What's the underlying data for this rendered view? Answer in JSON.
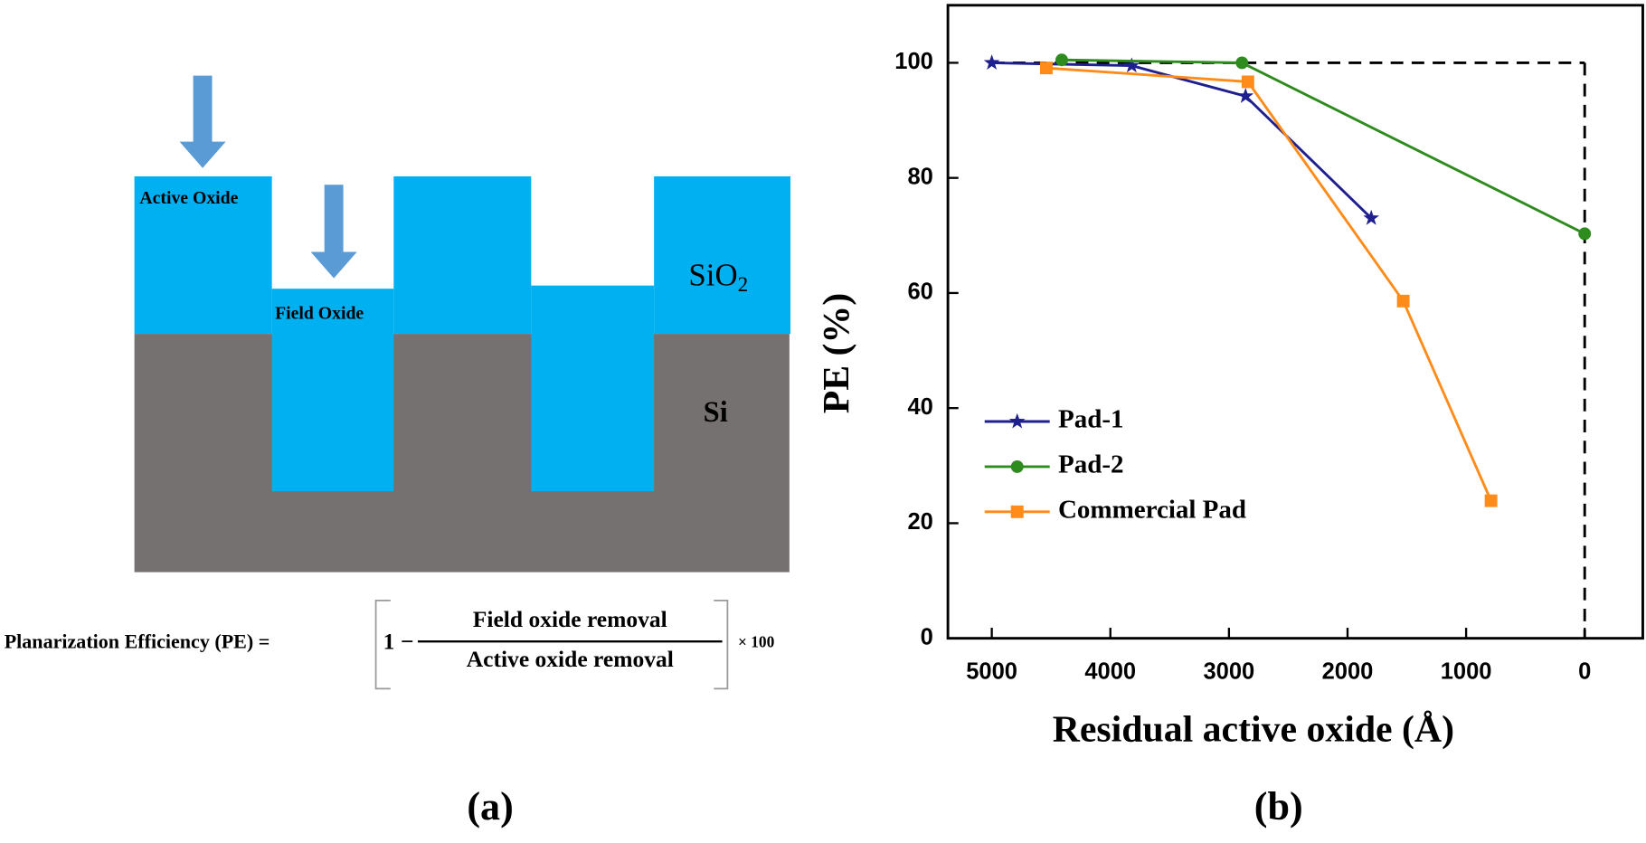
{
  "diagram": {
    "active_oxide": "Active Oxide",
    "field_oxide": "Field Oxide",
    "sio2": {
      "base": "SiO",
      "subscript": "2"
    },
    "si": "Si",
    "equation": {
      "lhs": "Planarization  Efficiency (PE) =",
      "one_minus": "1 −",
      "numerator": "Field oxide removal",
      "denominator": "Active oxide removal",
      "factor": "× 100"
    },
    "panel_label": "(a)"
  },
  "chart_data": {
    "type": "line",
    "panel_label": "(b)",
    "x_label": "Residual active oxide (Å)",
    "y_label": "PE (%)",
    "xlim": [
      5370,
      -490
    ],
    "ylim": [
      0,
      110
    ],
    "xticks": [
      5000,
      4000,
      3000,
      2000,
      1000,
      0
    ],
    "yticks": [
      0,
      20,
      40,
      60,
      80,
      100
    ],
    "legend": "center left",
    "reference_lines": [
      {
        "x": [
          5000,
          0
        ],
        "y": [
          100,
          100
        ]
      },
      {
        "x": [
          0,
          0
        ],
        "y": [
          100,
          0
        ]
      }
    ],
    "series": [
      {
        "name": "Pad-1",
        "color": "#1f1f8f",
        "marker": "star",
        "x": [
          5000,
          3820,
          2860,
          1800
        ],
        "values": [
          100,
          99.5,
          94.2,
          73
        ]
      },
      {
        "name": "Pad-2",
        "color": "#2e8b1e",
        "marker": "circle",
        "x": [
          4410,
          2890,
          0
        ],
        "values": [
          100.5,
          100,
          70.3
        ]
      },
      {
        "name": "Commercial Pad",
        "color": "#ff8c1a",
        "marker": "square",
        "x": [
          4540,
          2840,
          1530,
          790
        ],
        "values": [
          99.1,
          96.7,
          58.6,
          23.9
        ]
      }
    ]
  }
}
